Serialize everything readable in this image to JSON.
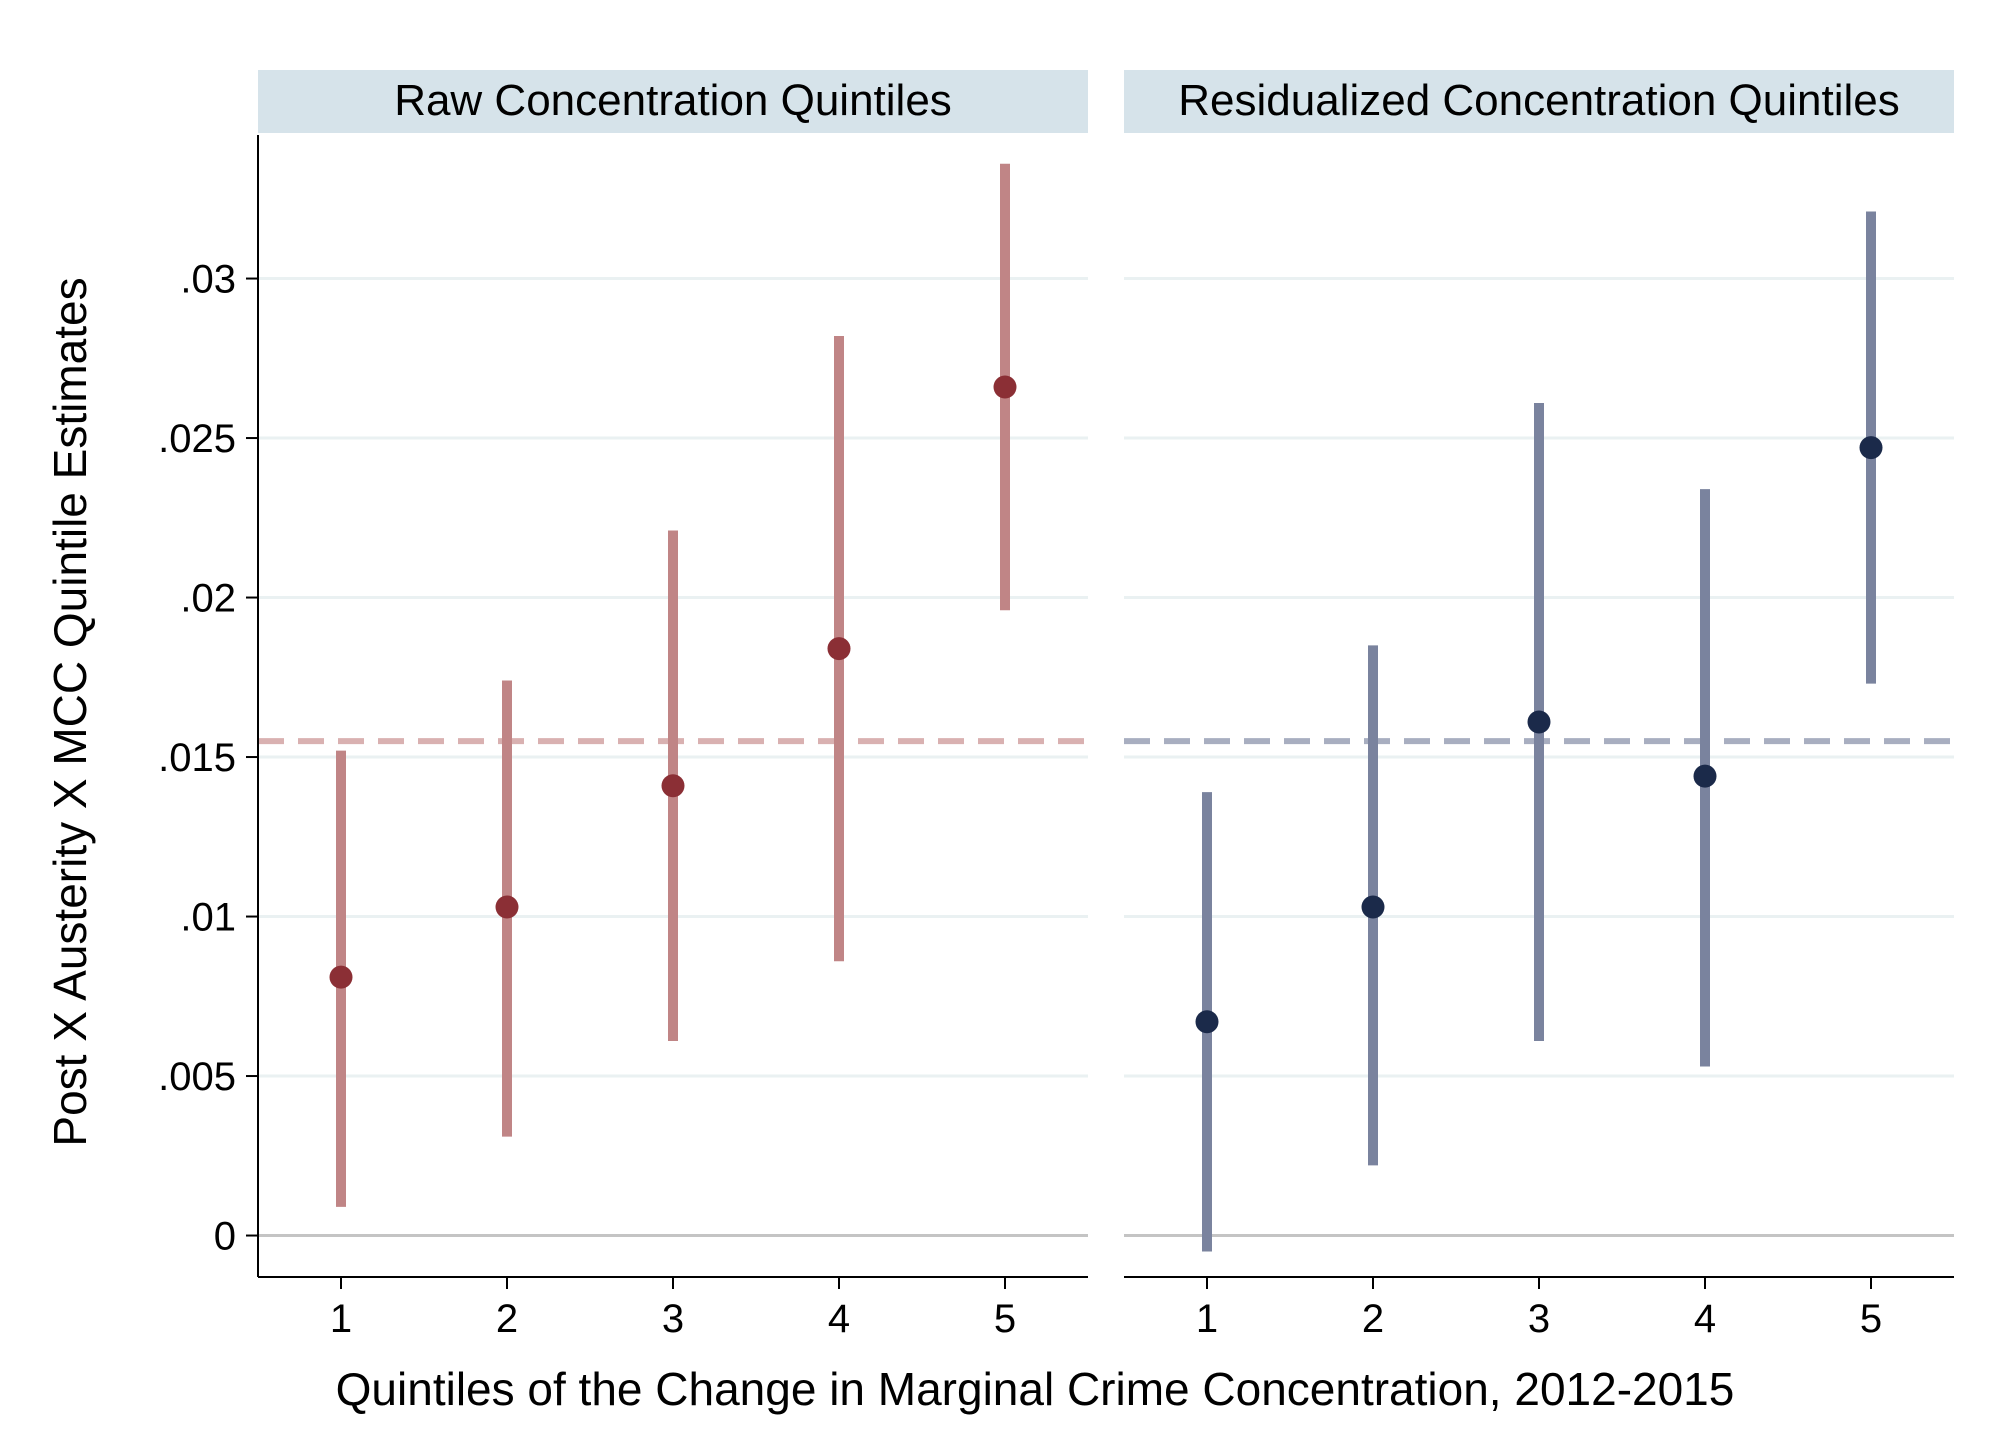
{
  "chart_data": {
    "type": "scatter",
    "subtype": "coefficient-plot-with-confidence-intervals",
    "ylabel": "Post X Austerity X MCC Quintile Estimates",
    "xlabel": "Quintiles of the Change in Marginal Crime Concentration, 2012-2015",
    "ylim": [
      -0.0013,
      0.0345
    ],
    "y_ticks": [
      0,
      0.005,
      0.01,
      0.015,
      0.02,
      0.025,
      0.03
    ],
    "y_tick_labels": [
      "0",
      ".005",
      ".01",
      ".015",
      ".02",
      ".025",
      ".03"
    ],
    "x_ticks": [
      1,
      2,
      3,
      4,
      5
    ],
    "x_tick_labels": [
      "1",
      "2",
      "3",
      "4",
      "5"
    ],
    "xlim": [
      0.5,
      5.5
    ],
    "grid": true,
    "panels": [
      {
        "title": "Raw Concentration Quintiles",
        "color": "#8b2f35",
        "ci_color": "#c08586",
        "ref_line_color": "#d9b1b1",
        "reference_line": 0.0155,
        "x": [
          1,
          2,
          3,
          4,
          5
        ],
        "estimates": [
          0.0081,
          0.0103,
          0.0141,
          0.0184,
          0.0266
        ],
        "ci_low": [
          0.0009,
          0.0031,
          0.0061,
          0.0086,
          0.0196
        ],
        "ci_high": [
          0.0152,
          0.0174,
          0.0221,
          0.0282,
          0.0336
        ]
      },
      {
        "title": "Residualized Concentration Quintiles",
        "color": "#1b2a4a",
        "ci_color": "#7a839e",
        "ref_line_color": "#a8aec0",
        "reference_line": 0.0155,
        "x": [
          1,
          2,
          3,
          4,
          5
        ],
        "estimates": [
          0.0067,
          0.0103,
          0.0161,
          0.0144,
          0.0247
        ],
        "ci_low": [
          -0.0005,
          0.0022,
          0.0061,
          0.0053,
          0.0173
        ],
        "ci_high": [
          0.0139,
          0.0185,
          0.0261,
          0.0234,
          0.0321
        ]
      }
    ]
  }
}
